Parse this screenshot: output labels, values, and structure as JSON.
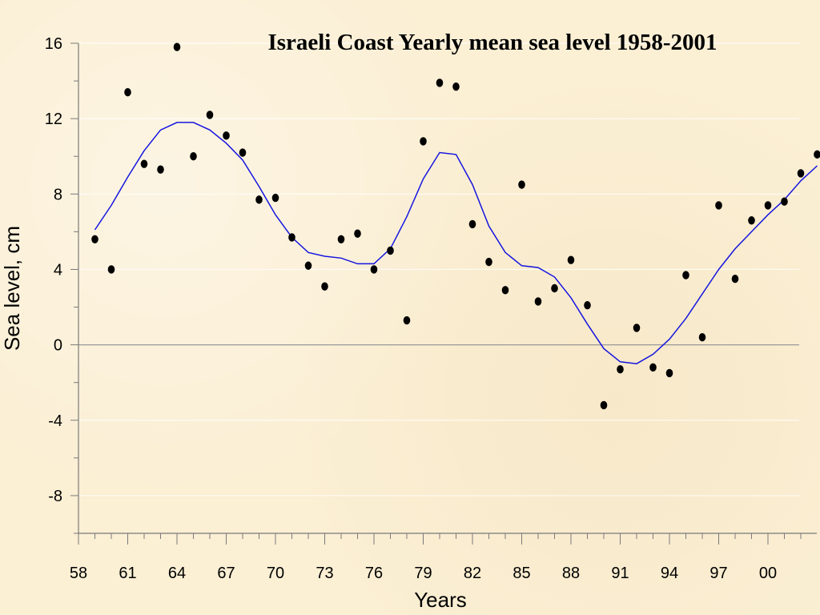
{
  "chart_data": {
    "type": "scatter",
    "title": "Israeli Coast Yearly mean sea level 1958-2001",
    "xlabel": "Years",
    "ylabel": "Sea level, cm",
    "xlim": [
      1958,
      2002
    ],
    "ylim": [
      -10,
      16
    ],
    "x_tick_values": [
      1958,
      1961,
      1964,
      1967,
      1970,
      1973,
      1976,
      1979,
      1982,
      1985,
      1988,
      1991,
      1994,
      1997,
      2000
    ],
    "x_tick_labels": [
      "58",
      "61",
      "64",
      "67",
      "70",
      "73",
      "76",
      "79",
      "82",
      "85",
      "88",
      "91",
      "94",
      "97",
      "00"
    ],
    "y_tick_values": [
      16,
      12,
      8,
      4,
      0,
      -4,
      -8
    ],
    "y_tick_labels": [
      "16",
      "12",
      "8",
      "4",
      "0",
      "-4",
      "-8"
    ],
    "grid": true,
    "colors": {
      "points": "#000000",
      "smooth_line": "#1515e0",
      "zero_line": "#999999"
    },
    "series": [
      {
        "type": "scatter",
        "x": [
          1959,
          1960,
          1961,
          1962,
          1963,
          1964,
          1965,
          1966,
          1967,
          1968,
          1969,
          1970,
          1971,
          1972,
          1973,
          1974,
          1975,
          1976,
          1977,
          1978,
          1979,
          1980,
          1981,
          1982,
          1983,
          1984,
          1985,
          1986,
          1987,
          1988,
          1989,
          1990,
          1991,
          1992,
          1993,
          1994,
          1995,
          1996,
          1997,
          1998,
          1999,
          2000,
          2001,
          2002,
          2003
        ],
        "y": [
          5.6,
          4.0,
          13.4,
          9.6,
          9.3,
          15.8,
          10.0,
          12.2,
          11.1,
          10.2,
          7.7,
          7.8,
          5.7,
          4.2,
          3.1,
          5.6,
          5.9,
          4.0,
          5.0,
          1.3,
          10.8,
          13.9,
          13.7,
          6.4,
          4.4,
          2.9,
          8.5,
          2.3,
          3.0,
          4.5,
          2.1,
          -3.2,
          -1.3,
          0.9,
          -1.2,
          -1.5,
          3.7,
          0.4,
          7.4,
          3.5,
          6.6,
          7.4,
          7.6,
          9.1,
          10.1
        ]
      },
      {
        "type": "line",
        "x": [
          1959,
          1960,
          1961,
          1962,
          1963,
          1964,
          1965,
          1966,
          1967,
          1968,
          1969,
          1970,
          1971,
          1972,
          1973,
          1974,
          1975,
          1976,
          1977,
          1978,
          1979,
          1980,
          1981,
          1982,
          1983,
          1984,
          1985,
          1986,
          1987,
          1988,
          1989,
          1990,
          1991,
          1992,
          1993,
          1994,
          1995,
          1996,
          1997,
          1998,
          1999,
          2000,
          2001,
          2002,
          2003
        ],
        "y": [
          6.1,
          7.4,
          8.9,
          10.3,
          11.4,
          11.8,
          11.8,
          11.4,
          10.7,
          9.8,
          8.4,
          6.9,
          5.7,
          4.9,
          4.7,
          4.6,
          4.3,
          4.3,
          5.1,
          6.8,
          8.8,
          10.2,
          10.1,
          8.5,
          6.3,
          4.9,
          4.2,
          4.1,
          3.6,
          2.5,
          1.1,
          -0.2,
          -0.9,
          -1.0,
          -0.5,
          0.3,
          1.4,
          2.7,
          4.0,
          5.1,
          6.0,
          6.9,
          7.7,
          8.7,
          9.5
        ]
      }
    ]
  }
}
